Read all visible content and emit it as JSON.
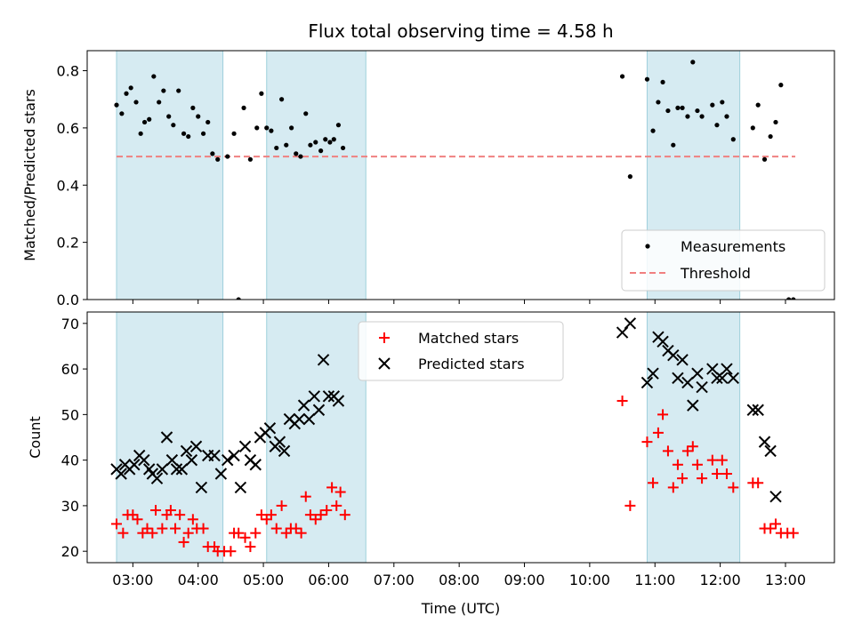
{
  "chart_data": [
    {
      "type": "scatter",
      "title": "Flux total observing time = 4.58 h",
      "xlabel": "",
      "ylabel": "Matched/Predicted stars",
      "xlim": [
        2.3,
        13.75
      ],
      "ylim": [
        0.0,
        0.87
      ],
      "yticks": [
        0.0,
        0.2,
        0.4,
        0.6,
        0.8
      ],
      "ytick_labels": [
        "0.0",
        "0.2",
        "0.4",
        "0.6",
        "0.8"
      ],
      "xticks": [
        3,
        4,
        5,
        6,
        7,
        8,
        9,
        10,
        11,
        12,
        13
      ],
      "legend_location": "lower-right",
      "shaded_intervals": [
        [
          2.75,
          4.38
        ],
        [
          5.05,
          6.57
        ],
        [
          10.88,
          12.3
        ]
      ],
      "threshold": {
        "name": "Threshold",
        "value": 0.5,
        "x_range": [
          2.75,
          13.15
        ],
        "color": "#f08080"
      },
      "series": [
        {
          "name": "Measurements",
          "marker": "dot",
          "color": "#000000",
          "points": [
            [
              2.75,
              0.68
            ],
            [
              2.83,
              0.65
            ],
            [
              2.9,
              0.72
            ],
            [
              2.97,
              0.74
            ],
            [
              3.05,
              0.69
            ],
            [
              3.12,
              0.58
            ],
            [
              3.18,
              0.62
            ],
            [
              3.25,
              0.63
            ],
            [
              3.32,
              0.78
            ],
            [
              3.4,
              0.69
            ],
            [
              3.47,
              0.73
            ],
            [
              3.55,
              0.64
            ],
            [
              3.62,
              0.61
            ],
            [
              3.7,
              0.73
            ],
            [
              3.78,
              0.58
            ],
            [
              3.85,
              0.57
            ],
            [
              3.92,
              0.67
            ],
            [
              4.0,
              0.64
            ],
            [
              4.08,
              0.58
            ],
            [
              4.15,
              0.62
            ],
            [
              4.22,
              0.51
            ],
            [
              4.3,
              0.49
            ],
            [
              4.45,
              0.5
            ],
            [
              4.55,
              0.58
            ],
            [
              4.62,
              0.0
            ],
            [
              4.7,
              0.67
            ],
            [
              4.8,
              0.49
            ],
            [
              4.9,
              0.6
            ],
            [
              4.97,
              0.72
            ],
            [
              5.05,
              0.6
            ],
            [
              5.12,
              0.59
            ],
            [
              5.2,
              0.53
            ],
            [
              5.28,
              0.7
            ],
            [
              5.35,
              0.54
            ],
            [
              5.43,
              0.6
            ],
            [
              5.5,
              0.51
            ],
            [
              5.57,
              0.5
            ],
            [
              5.65,
              0.65
            ],
            [
              5.72,
              0.54
            ],
            [
              5.8,
              0.55
            ],
            [
              5.88,
              0.52
            ],
            [
              5.95,
              0.56
            ],
            [
              6.02,
              0.55
            ],
            [
              6.08,
              0.56
            ],
            [
              6.15,
              0.61
            ],
            [
              6.22,
              0.53
            ],
            [
              10.5,
              0.78
            ],
            [
              10.62,
              0.43
            ],
            [
              10.88,
              0.77
            ],
            [
              10.97,
              0.59
            ],
            [
              11.05,
              0.69
            ],
            [
              11.12,
              0.76
            ],
            [
              11.2,
              0.66
            ],
            [
              11.28,
              0.54
            ],
            [
              11.35,
              0.67
            ],
            [
              11.42,
              0.67
            ],
            [
              11.5,
              0.64
            ],
            [
              11.58,
              0.83
            ],
            [
              11.65,
              0.66
            ],
            [
              11.72,
              0.64
            ],
            [
              11.88,
              0.68
            ],
            [
              11.95,
              0.61
            ],
            [
              12.03,
              0.69
            ],
            [
              12.1,
              0.64
            ],
            [
              12.2,
              0.56
            ],
            [
              12.5,
              0.6
            ],
            [
              12.58,
              0.68
            ],
            [
              12.68,
              0.49
            ],
            [
              12.77,
              0.57
            ],
            [
              12.85,
              0.62
            ],
            [
              12.93,
              0.75
            ],
            [
              13.05,
              0.0
            ],
            [
              13.12,
              0.0
            ]
          ]
        }
      ]
    },
    {
      "type": "scatter",
      "title": "",
      "xlabel": "Time (UTC)",
      "ylabel": "Count",
      "xlim": [
        2.3,
        13.75
      ],
      "ylim": [
        17.5,
        72.5
      ],
      "yticks": [
        20,
        30,
        40,
        50,
        60,
        70
      ],
      "ytick_labels": [
        "20",
        "30",
        "40",
        "50",
        "60",
        "70"
      ],
      "xticks": [
        3,
        4,
        5,
        6,
        7,
        8,
        9,
        10,
        11,
        12,
        13
      ],
      "xtick_labels": [
        "03:00",
        "04:00",
        "05:00",
        "06:00",
        "07:00",
        "08:00",
        "09:00",
        "10:00",
        "11:00",
        "12:00",
        "13:00"
      ],
      "legend_location": "upper-center",
      "shaded_intervals": [
        [
          2.75,
          4.38
        ],
        [
          5.05,
          6.57
        ],
        [
          10.88,
          12.3
        ]
      ],
      "series": [
        {
          "name": "Matched stars",
          "marker": "plus",
          "color": "#ff0000",
          "points": [
            [
              2.75,
              26
            ],
            [
              2.85,
              24
            ],
            [
              2.92,
              28
            ],
            [
              3.0,
              28
            ],
            [
              3.07,
              27
            ],
            [
              3.15,
              24
            ],
            [
              3.22,
              25
            ],
            [
              3.3,
              24
            ],
            [
              3.35,
              29
            ],
            [
              3.45,
              25
            ],
            [
              3.52,
              28
            ],
            [
              3.58,
              29
            ],
            [
              3.65,
              25
            ],
            [
              3.72,
              28
            ],
            [
              3.78,
              22
            ],
            [
              3.85,
              24
            ],
            [
              3.92,
              27
            ],
            [
              3.98,
              25
            ],
            [
              4.08,
              25
            ],
            [
              4.15,
              21
            ],
            [
              4.25,
              21
            ],
            [
              4.3,
              20
            ],
            [
              4.4,
              20
            ],
            [
              4.5,
              20
            ],
            [
              4.55,
              24
            ],
            [
              4.62,
              24
            ],
            [
              4.72,
              23
            ],
            [
              4.8,
              21
            ],
            [
              4.88,
              24
            ],
            [
              4.97,
              28
            ],
            [
              5.05,
              27
            ],
            [
              5.12,
              28
            ],
            [
              5.2,
              25
            ],
            [
              5.28,
              30
            ],
            [
              5.35,
              24
            ],
            [
              5.42,
              25
            ],
            [
              5.5,
              25
            ],
            [
              5.58,
              24
            ],
            [
              5.65,
              32
            ],
            [
              5.72,
              28
            ],
            [
              5.8,
              27
            ],
            [
              5.88,
              28
            ],
            [
              5.97,
              29
            ],
            [
              6.05,
              34
            ],
            [
              6.12,
              30
            ],
            [
              6.18,
              33
            ],
            [
              6.25,
              28
            ],
            [
              10.5,
              53
            ],
            [
              10.62,
              30
            ],
            [
              10.88,
              44
            ],
            [
              10.97,
              35
            ],
            [
              11.05,
              46
            ],
            [
              11.12,
              50
            ],
            [
              11.2,
              42
            ],
            [
              11.28,
              34
            ],
            [
              11.35,
              39
            ],
            [
              11.42,
              36
            ],
            [
              11.5,
              42
            ],
            [
              11.58,
              43
            ],
            [
              11.65,
              39
            ],
            [
              11.72,
              36
            ],
            [
              11.88,
              40
            ],
            [
              11.95,
              37
            ],
            [
              12.03,
              40
            ],
            [
              12.1,
              37
            ],
            [
              12.2,
              34
            ],
            [
              12.5,
              35
            ],
            [
              12.58,
              35
            ],
            [
              12.68,
              25
            ],
            [
              12.77,
              25
            ],
            [
              12.85,
              26
            ],
            [
              12.93,
              24
            ],
            [
              13.03,
              24
            ],
            [
              13.12,
              24
            ]
          ]
        },
        {
          "name": "Predicted stars",
          "marker": "x",
          "color": "#000000",
          "points": [
            [
              2.75,
              38
            ],
            [
              2.82,
              37
            ],
            [
              2.88,
              39
            ],
            [
              2.95,
              38
            ],
            [
              3.02,
              39
            ],
            [
              3.1,
              41
            ],
            [
              3.17,
              40
            ],
            [
              3.25,
              38
            ],
            [
              3.3,
              37
            ],
            [
              3.37,
              36
            ],
            [
              3.45,
              38
            ],
            [
              3.52,
              45
            ],
            [
              3.6,
              40
            ],
            [
              3.67,
              38
            ],
            [
              3.75,
              38
            ],
            [
              3.82,
              42
            ],
            [
              3.9,
              40
            ],
            [
              3.97,
              43
            ],
            [
              4.05,
              34
            ],
            [
              4.15,
              41
            ],
            [
              4.25,
              41
            ],
            [
              4.35,
              37
            ],
            [
              4.45,
              40
            ],
            [
              4.55,
              41
            ],
            [
              4.65,
              34
            ],
            [
              4.72,
              43
            ],
            [
              4.8,
              40
            ],
            [
              4.88,
              39
            ],
            [
              4.95,
              45
            ],
            [
              5.03,
              46
            ],
            [
              5.1,
              47
            ],
            [
              5.18,
              43
            ],
            [
              5.25,
              44
            ],
            [
              5.32,
              42
            ],
            [
              5.4,
              49
            ],
            [
              5.48,
              48
            ],
            [
              5.55,
              49
            ],
            [
              5.62,
              52
            ],
            [
              5.7,
              49
            ],
            [
              5.78,
              54
            ],
            [
              5.85,
              51
            ],
            [
              5.92,
              62
            ],
            [
              6.0,
              54
            ],
            [
              6.08,
              54
            ],
            [
              6.15,
              53
            ],
            [
              10.5,
              68
            ],
            [
              10.62,
              70
            ],
            [
              10.88,
              57
            ],
            [
              10.97,
              59
            ],
            [
              11.05,
              67
            ],
            [
              11.12,
              66
            ],
            [
              11.2,
              64
            ],
            [
              11.28,
              63
            ],
            [
              11.35,
              58
            ],
            [
              11.42,
              62
            ],
            [
              11.5,
              57
            ],
            [
              11.58,
              52
            ],
            [
              11.65,
              59
            ],
            [
              11.72,
              56
            ],
            [
              11.88,
              60
            ],
            [
              11.95,
              58
            ],
            [
              12.03,
              58
            ],
            [
              12.1,
              60
            ],
            [
              12.2,
              58
            ],
            [
              12.5,
              51
            ],
            [
              12.58,
              51
            ],
            [
              12.68,
              44
            ],
            [
              12.77,
              42
            ],
            [
              12.85,
              32
            ]
          ]
        }
      ]
    }
  ]
}
